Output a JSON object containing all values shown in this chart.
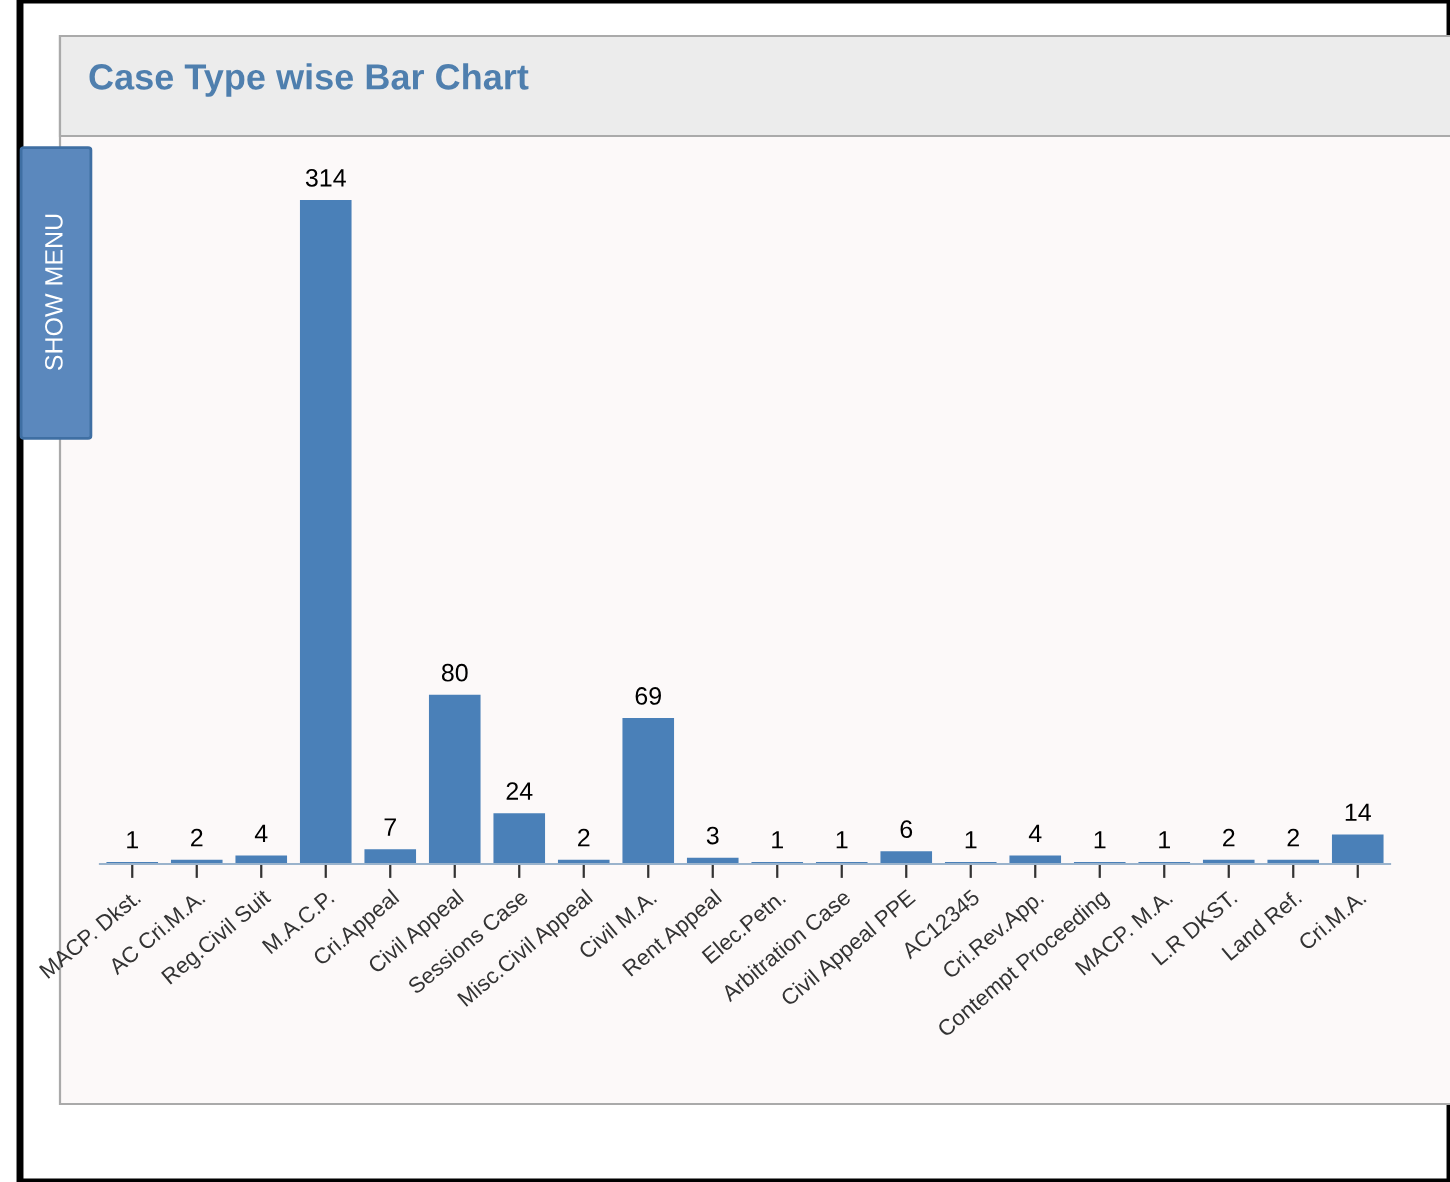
{
  "chart_data": {
    "type": "bar",
    "title": "Case Type wise Bar Chart",
    "categories": [
      "MACP. Dkst.",
      "AC Cri.M.A.",
      "Reg.Civil Suit",
      "M.A.C.P.",
      "Cri.Appeal",
      "Civil Appeal",
      "Sessions Case",
      "Misc.Civil Appeal",
      "Civil M.A.",
      "Rent Appeal",
      "Elec.Petn.",
      "Arbitration Case",
      "Civil Appeal PPE",
      "AC12345",
      "Cri.Rev.App.",
      "Contempt Proceeding",
      "MACP. M.A.",
      "L.R DKST.",
      "Land Ref.",
      "Cri.M.A."
    ],
    "values": [
      1,
      2,
      4,
      314,
      7,
      80,
      24,
      2,
      69,
      3,
      1,
      1,
      6,
      1,
      4,
      1,
      1,
      2,
      2,
      14
    ],
    "color": "#4a80b8",
    "data_labels": true,
    "grid": false,
    "annotations": [
      "SHOW MENU"
    ]
  }
}
